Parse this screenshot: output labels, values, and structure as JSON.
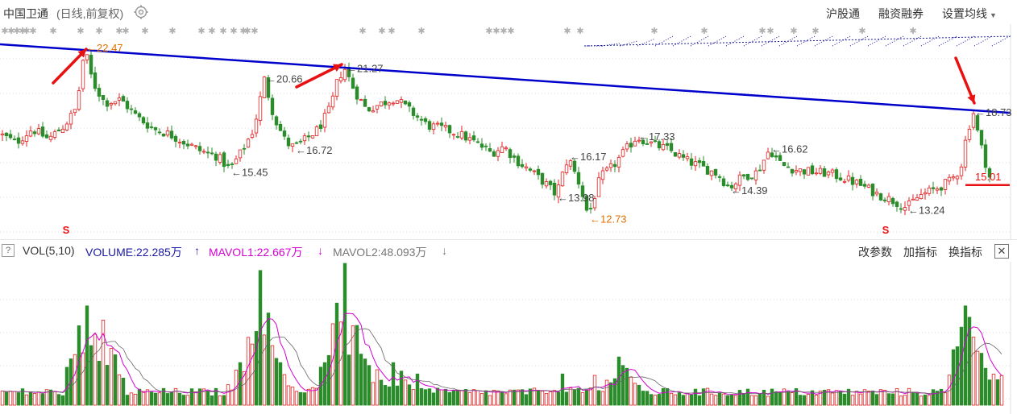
{
  "header": {
    "stock_name": "中国卫通",
    "chart_mode": "(日线,前复权)",
    "buttons": [
      "沪股通",
      "融资融券",
      "设置均线"
    ]
  },
  "indicator_bar": {
    "help": "?",
    "vol": "VOL(5,10)",
    "volume": "VOLUME:22.285万",
    "volume_arrow": "↑",
    "mavol1": "MAVOL1:22.667万",
    "mavol1_arrow": "↓",
    "mavol2": "MAVOL2:48.093万",
    "mavol2_arrow": "↓",
    "buttons": [
      "改参数",
      "加指标",
      "换指标"
    ],
    "close": "✕"
  },
  "colors": {
    "up": "#e02020",
    "down": "#2a8c2a",
    "trendline": "#0000cc",
    "arrows": "#e81010",
    "mavol1": "#d400d4",
    "mavol2": "#666666",
    "low_label": "#e07000"
  },
  "chart_data": {
    "type": "candlestick",
    "price_labels": [
      {
        "label": "22.47",
        "style": "high-orange"
      },
      {
        "label": "20.66",
        "style": "high"
      },
      {
        "label": "21.27",
        "style": "high"
      },
      {
        "label": "16.72",
        "style": "low"
      },
      {
        "label": "15.45",
        "style": "low"
      },
      {
        "label": "16.17",
        "style": "high"
      },
      {
        "label": "13.98",
        "style": "low"
      },
      {
        "label": "12.73",
        "style": "low-orange"
      },
      {
        "label": "17.33",
        "style": "high"
      },
      {
        "label": "16.62",
        "style": "high"
      },
      {
        "label": "14.39",
        "style": "low"
      },
      {
        "label": "13.24",
        "style": "low"
      },
      {
        "label": "18.73",
        "style": "high"
      },
      {
        "label": "15.01",
        "style": "last"
      }
    ],
    "price_path": [
      [
        0,
        17.5
      ],
      [
        20,
        17.0
      ],
      [
        40,
        17.8
      ],
      [
        60,
        17.2
      ],
      [
        80,
        18.0
      ],
      [
        95,
        19.0
      ],
      [
        105,
        22.47
      ],
      [
        115,
        20.5
      ],
      [
        130,
        19.3
      ],
      [
        150,
        19.5
      ],
      [
        170,
        18.5
      ],
      [
        190,
        17.8
      ],
      [
        210,
        17.5
      ],
      [
        230,
        17.0
      ],
      [
        250,
        16.5
      ],
      [
        270,
        16.2
      ],
      [
        285,
        15.45
      ],
      [
        300,
        16.5
      ],
      [
        315,
        17.8
      ],
      [
        328,
        20.66
      ],
      [
        340,
        18.5
      ],
      [
        355,
        17.0
      ],
      [
        365,
        16.72
      ],
      [
        380,
        17.2
      ],
      [
        395,
        17.8
      ],
      [
        410,
        19.0
      ],
      [
        420,
        20.8
      ],
      [
        428,
        21.27
      ],
      [
        440,
        20.0
      ],
      [
        455,
        18.9
      ],
      [
        470,
        19.2
      ],
      [
        490,
        19.6
      ],
      [
        510,
        18.8
      ],
      [
        530,
        18.0
      ],
      [
        550,
        17.8
      ],
      [
        570,
        17.5
      ],
      [
        590,
        17.0
      ],
      [
        610,
        16.4
      ],
      [
        625,
        16.8
      ],
      [
        640,
        16.0
      ],
      [
        660,
        15.3
      ],
      [
        680,
        14.5
      ],
      [
        690,
        13.98
      ],
      [
        705,
        16.17
      ],
      [
        720,
        14.5
      ],
      [
        730,
        12.73
      ],
      [
        745,
        15.0
      ],
      [
        760,
        15.6
      ],
      [
        775,
        16.5
      ],
      [
        790,
        17.33
      ],
      [
        810,
        16.9
      ],
      [
        830,
        16.6
      ],
      [
        850,
        16.0
      ],
      [
        870,
        15.6
      ],
      [
        890,
        15.2
      ],
      [
        905,
        14.39
      ],
      [
        920,
        15.0
      ],
      [
        940,
        15.3
      ],
      [
        955,
        16.62
      ],
      [
        970,
        15.7
      ],
      [
        990,
        15.4
      ],
      [
        1010,
        15.3
      ],
      [
        1030,
        15.2
      ],
      [
        1050,
        14.9
      ],
      [
        1070,
        14.5
      ],
      [
        1090,
        14.0
      ],
      [
        1110,
        13.6
      ],
      [
        1125,
        13.24
      ],
      [
        1140,
        13.9
      ],
      [
        1160,
        14.3
      ],
      [
        1180,
        14.8
      ],
      [
        1192,
        15.5
      ],
      [
        1200,
        17.6
      ],
      [
        1208,
        18.73
      ],
      [
        1215,
        17.2
      ],
      [
        1222,
        16.0
      ],
      [
        1228,
        15.01
      ]
    ],
    "trendline": [
      [
        0,
        22.7
      ],
      [
        1254,
        18.73
      ]
    ],
    "ylim": [
      12.2,
      23.4
    ],
    "volume": {
      "ylim": [
        0,
        1000
      ],
      "latest": 222.85,
      "mavol1_latest": 226.67,
      "mavol2_latest": 480.93,
      "spikes": [
        [
          100,
          560
        ],
        [
          106,
          700
        ],
        [
          112,
          420
        ],
        [
          118,
          500
        ],
        [
          128,
          600
        ],
        [
          136,
          400
        ],
        [
          140,
          300
        ],
        [
          300,
          300
        ],
        [
          310,
          420
        ],
        [
          318,
          520
        ],
        [
          325,
          950
        ],
        [
          332,
          650
        ],
        [
          340,
          420
        ],
        [
          348,
          300
        ],
        [
          405,
          300
        ],
        [
          412,
          480
        ],
        [
          418,
          720
        ],
        [
          424,
          560
        ],
        [
          430,
          1000
        ],
        [
          436,
          560
        ],
        [
          442,
          420
        ],
        [
          450,
          360
        ],
        [
          458,
          280
        ],
        [
          466,
          250
        ],
        [
          488,
          300
        ],
        [
          500,
          240
        ],
        [
          520,
          220
        ],
        [
          700,
          220
        ],
        [
          740,
          210
        ],
        [
          770,
          340
        ],
        [
          775,
          280
        ],
        [
          780,
          260
        ],
        [
          1195,
          550
        ],
        [
          1199,
          700
        ],
        [
          1203,
          620
        ],
        [
          1207,
          480
        ],
        [
          1212,
          380
        ],
        [
          1218,
          300
        ],
        [
          1224,
          260
        ]
      ]
    }
  }
}
